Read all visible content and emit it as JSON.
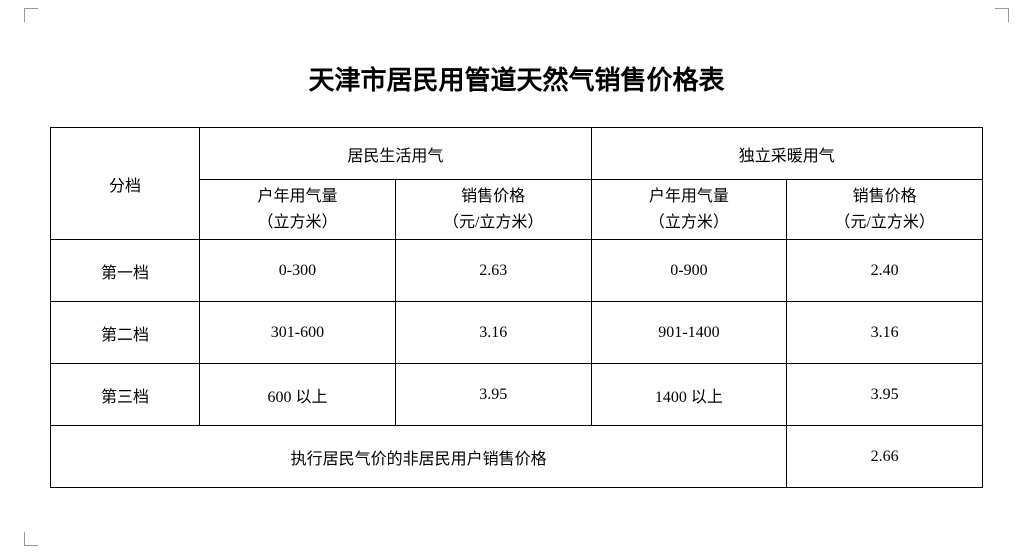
{
  "title": "天津市居民用管道天然气销售价格表",
  "table": {
    "tier_header": "分档",
    "group1": "居民生活用气",
    "group2": "独立采暖用气",
    "sub_usage_l1": "户年用气量",
    "sub_usage_l2": "（立方米）",
    "sub_price_l1": "销售价格",
    "sub_price_l2": "（元/立方米）",
    "rows": [
      {
        "tier": "第一档",
        "g1_usage": "0-300",
        "g1_price": "2.63",
        "g2_usage": "0-900",
        "g2_price": "2.40"
      },
      {
        "tier": "第二档",
        "g1_usage": "301-600",
        "g1_price": "3.16",
        "g2_usage": "901-1400",
        "g2_price": "3.16"
      },
      {
        "tier": "第三档",
        "g1_usage": "600 以上",
        "g1_price": "3.95",
        "g2_usage": "1400 以上",
        "g2_price": "3.95"
      }
    ],
    "footer_label": "执行居民气价的非居民用户销售价格",
    "footer_price": "2.66"
  },
  "style": {
    "title_fontsize": 26,
    "cell_fontsize": 16,
    "border_color": "#000000",
    "background_color": "#ffffff",
    "text_color": "#000000"
  }
}
